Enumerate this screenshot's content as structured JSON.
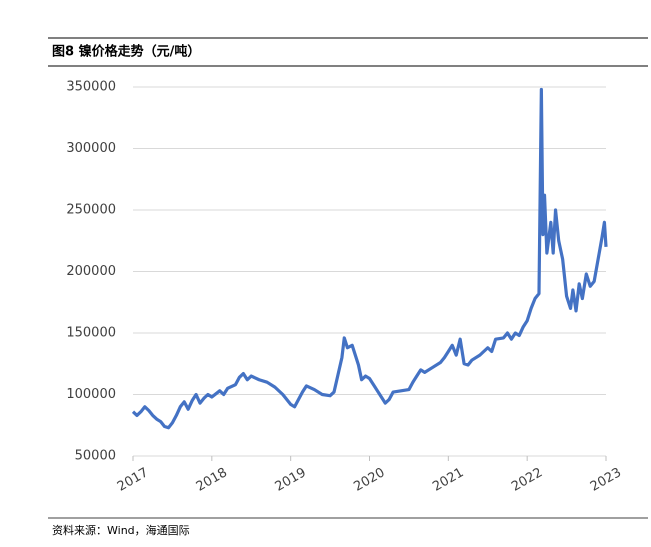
{
  "title": "图8  镍价格走势（元/吨）",
  "source": "资料来源：Wind，海通国际",
  "chart_data": {
    "type": "line",
    "x": [
      2017.0,
      2017.05,
      2017.1,
      2017.15,
      2017.2,
      2017.25,
      2017.3,
      2017.35,
      2017.4,
      2017.45,
      2017.5,
      2017.55,
      2017.6,
      2017.65,
      2017.7,
      2017.75,
      2017.8,
      2017.85,
      2017.9,
      2017.95,
      2018.0,
      2018.1,
      2018.15,
      2018.2,
      2018.3,
      2018.35,
      2018.4,
      2018.45,
      2018.5,
      2018.6,
      2018.7,
      2018.8,
      2018.9,
      2019.0,
      2019.05,
      2019.1,
      2019.15,
      2019.2,
      2019.3,
      2019.4,
      2019.5,
      2019.55,
      2019.6,
      2019.65,
      2019.68,
      2019.72,
      2019.78,
      2019.82,
      2019.86,
      2019.9,
      2019.95,
      2020.0,
      2020.05,
      2020.1,
      2020.2,
      2020.25,
      2020.3,
      2020.4,
      2020.5,
      2020.55,
      2020.6,
      2020.65,
      2020.7,
      2020.8,
      2020.9,
      2020.95,
      2021.0,
      2021.05,
      2021.1,
      2021.15,
      2021.2,
      2021.25,
      2021.3,
      2021.4,
      2021.5,
      2021.55,
      2021.6,
      2021.7,
      2021.75,
      2021.8,
      2021.85,
      2021.9,
      2021.95,
      2022.0,
      2022.05,
      2022.1,
      2022.15,
      2022.18,
      2022.2,
      2022.22,
      2022.25,
      2022.3,
      2022.33,
      2022.36,
      2022.4,
      2022.45,
      2022.5,
      2022.55,
      2022.58,
      2022.62,
      2022.66,
      2022.7,
      2022.75,
      2022.8,
      2022.85,
      2022.9,
      2022.95,
      2022.98,
      2023.0
    ],
    "series": [
      {
        "color": "#4472c4",
        "values": [
          86000,
          83000,
          86000,
          90000,
          87000,
          83000,
          80000,
          78000,
          74000,
          73000,
          77000,
          83000,
          90000,
          94000,
          88000,
          95000,
          100000,
          93000,
          97000,
          100000,
          98000,
          103000,
          100000,
          105000,
          108000,
          114000,
          117000,
          112000,
          115000,
          112000,
          110000,
          106000,
          100000,
          92000,
          90000,
          96000,
          102000,
          107000,
          104000,
          100000,
          99000,
          102000,
          116000,
          130000,
          146000,
          138000,
          140000,
          132000,
          124000,
          112000,
          115000,
          113000,
          108000,
          103000,
          93000,
          96000,
          102000,
          103000,
          104000,
          110000,
          115000,
          120000,
          118000,
          122000,
          126000,
          130000,
          135000,
          140000,
          132000,
          145000,
          125000,
          124000,
          128000,
          132000,
          138000,
          135000,
          145000,
          146000,
          150000,
          145000,
          150000,
          148000,
          155000,
          160000,
          170000,
          178000,
          182000,
          348000,
          230000,
          262000,
          215000,
          240000,
          215000,
          250000,
          225000,
          210000,
          180000,
          170000,
          185000,
          168000,
          190000,
          178000,
          198000,
          188000,
          192000,
          210000,
          228000,
          240000,
          220000
        ]
      }
    ],
    "xlim": [
      2017,
      2023
    ],
    "xticks": [
      2017,
      2018,
      2019,
      2020,
      2021,
      2022,
      2023
    ],
    "ylim": [
      50000,
      350000
    ],
    "yticks": [
      50000,
      100000,
      150000,
      200000,
      250000,
      300000,
      350000
    ],
    "grid": true
  }
}
